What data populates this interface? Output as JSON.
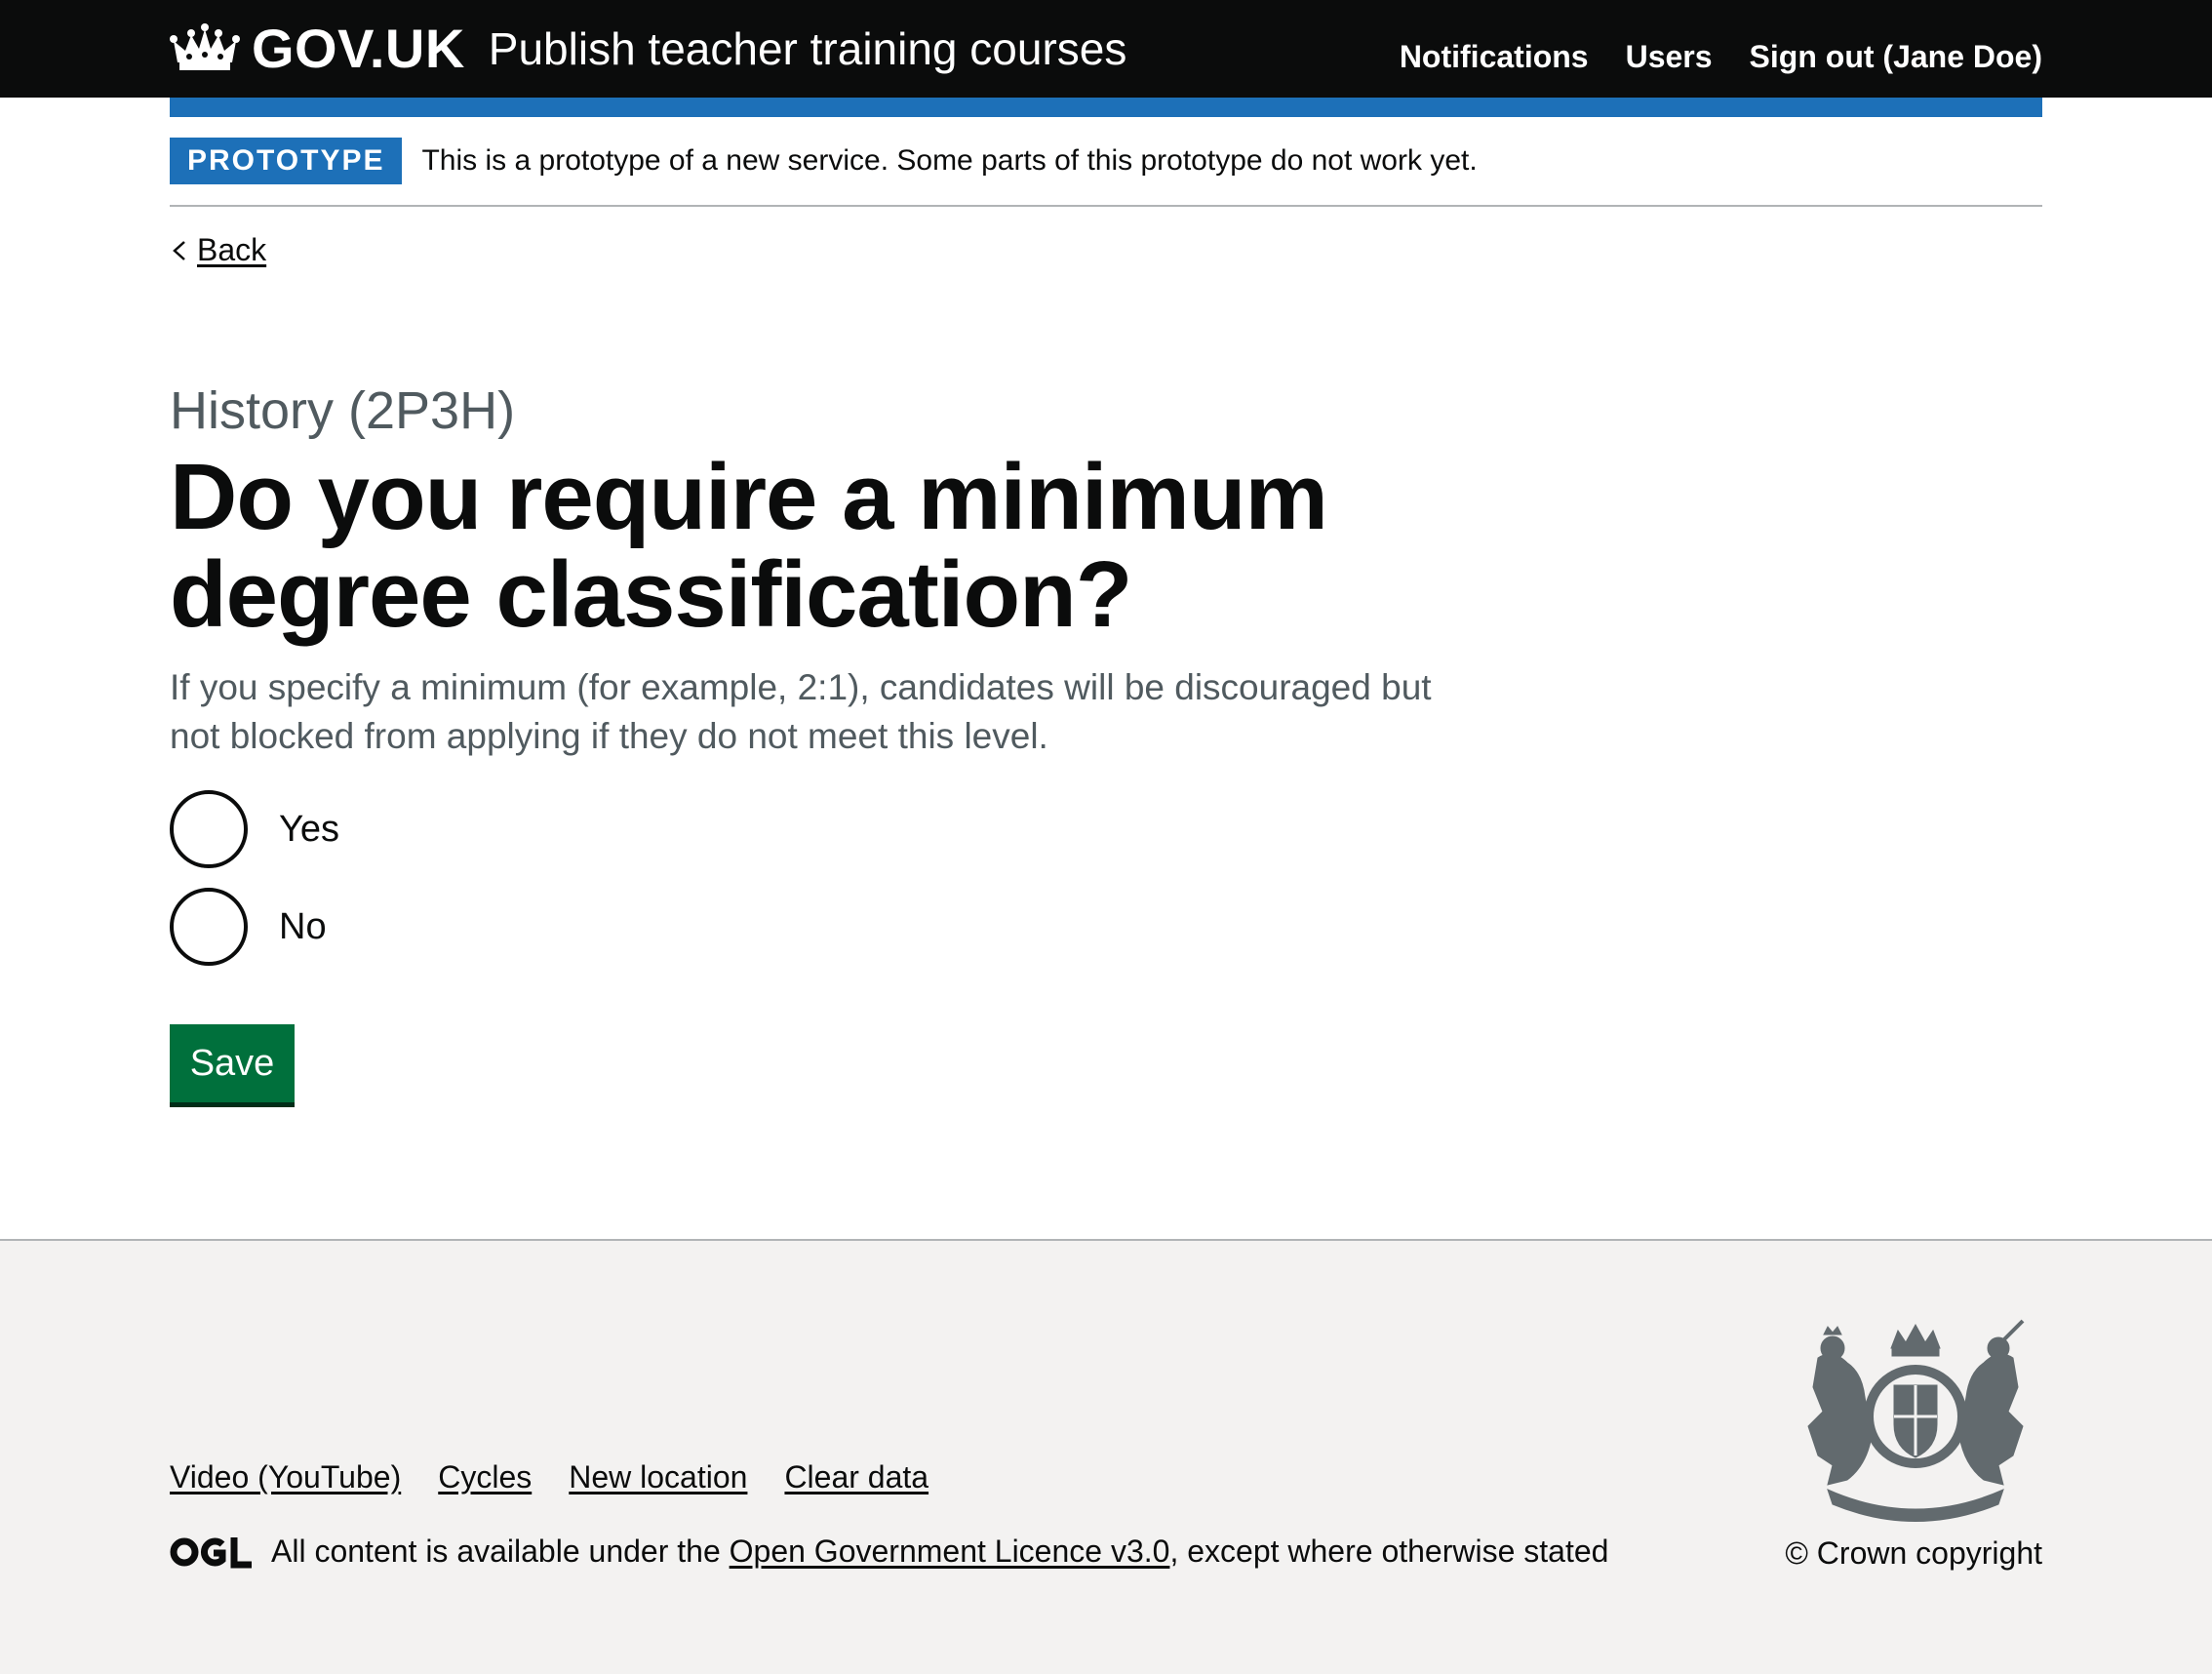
{
  "header": {
    "logo_text": "GOV.UK",
    "service_name": "Publish teacher training courses",
    "nav": {
      "notifications": "Notifications",
      "users": "Users",
      "sign_out": "Sign out (Jane Doe)"
    }
  },
  "phase_banner": {
    "tag": "PROTOTYPE",
    "text": "This is a prototype of a new service. Some parts of this prototype do not work yet."
  },
  "back_link": "Back",
  "main": {
    "caption": "History (2P3H)",
    "heading": "Do you require a minimum degree classification?",
    "hint": "If you specify a minimum (for example, 2:1), candidates will be discouraged but not blocked from applying if they do not meet this level.",
    "options": [
      {
        "label": "Yes",
        "checked": false
      },
      {
        "label": "No",
        "checked": false
      }
    ],
    "save_label": "Save"
  },
  "footer": {
    "links": {
      "video": "Video (YouTube)",
      "cycles": "Cycles",
      "new_location": "New location",
      "clear_data": "Clear data"
    },
    "licence_prefix": "All content is available under the",
    "licence_link": "Open Government Licence v3.0",
    "licence_suffix": ", except where otherwise stated",
    "copyright": "© Crown copyright"
  },
  "colors": {
    "header_bg": "#0b0c0c",
    "brand_blue": "#1d70b8",
    "button_green": "#00703c",
    "footer_bg": "#f3f2f1",
    "secondary_text": "#505a5f"
  },
  "icons": {
    "logo": "crown-icon",
    "back": "chevron-left-icon",
    "licence": "ogl-icon",
    "crest": "royal-coat-of-arms-icon"
  }
}
